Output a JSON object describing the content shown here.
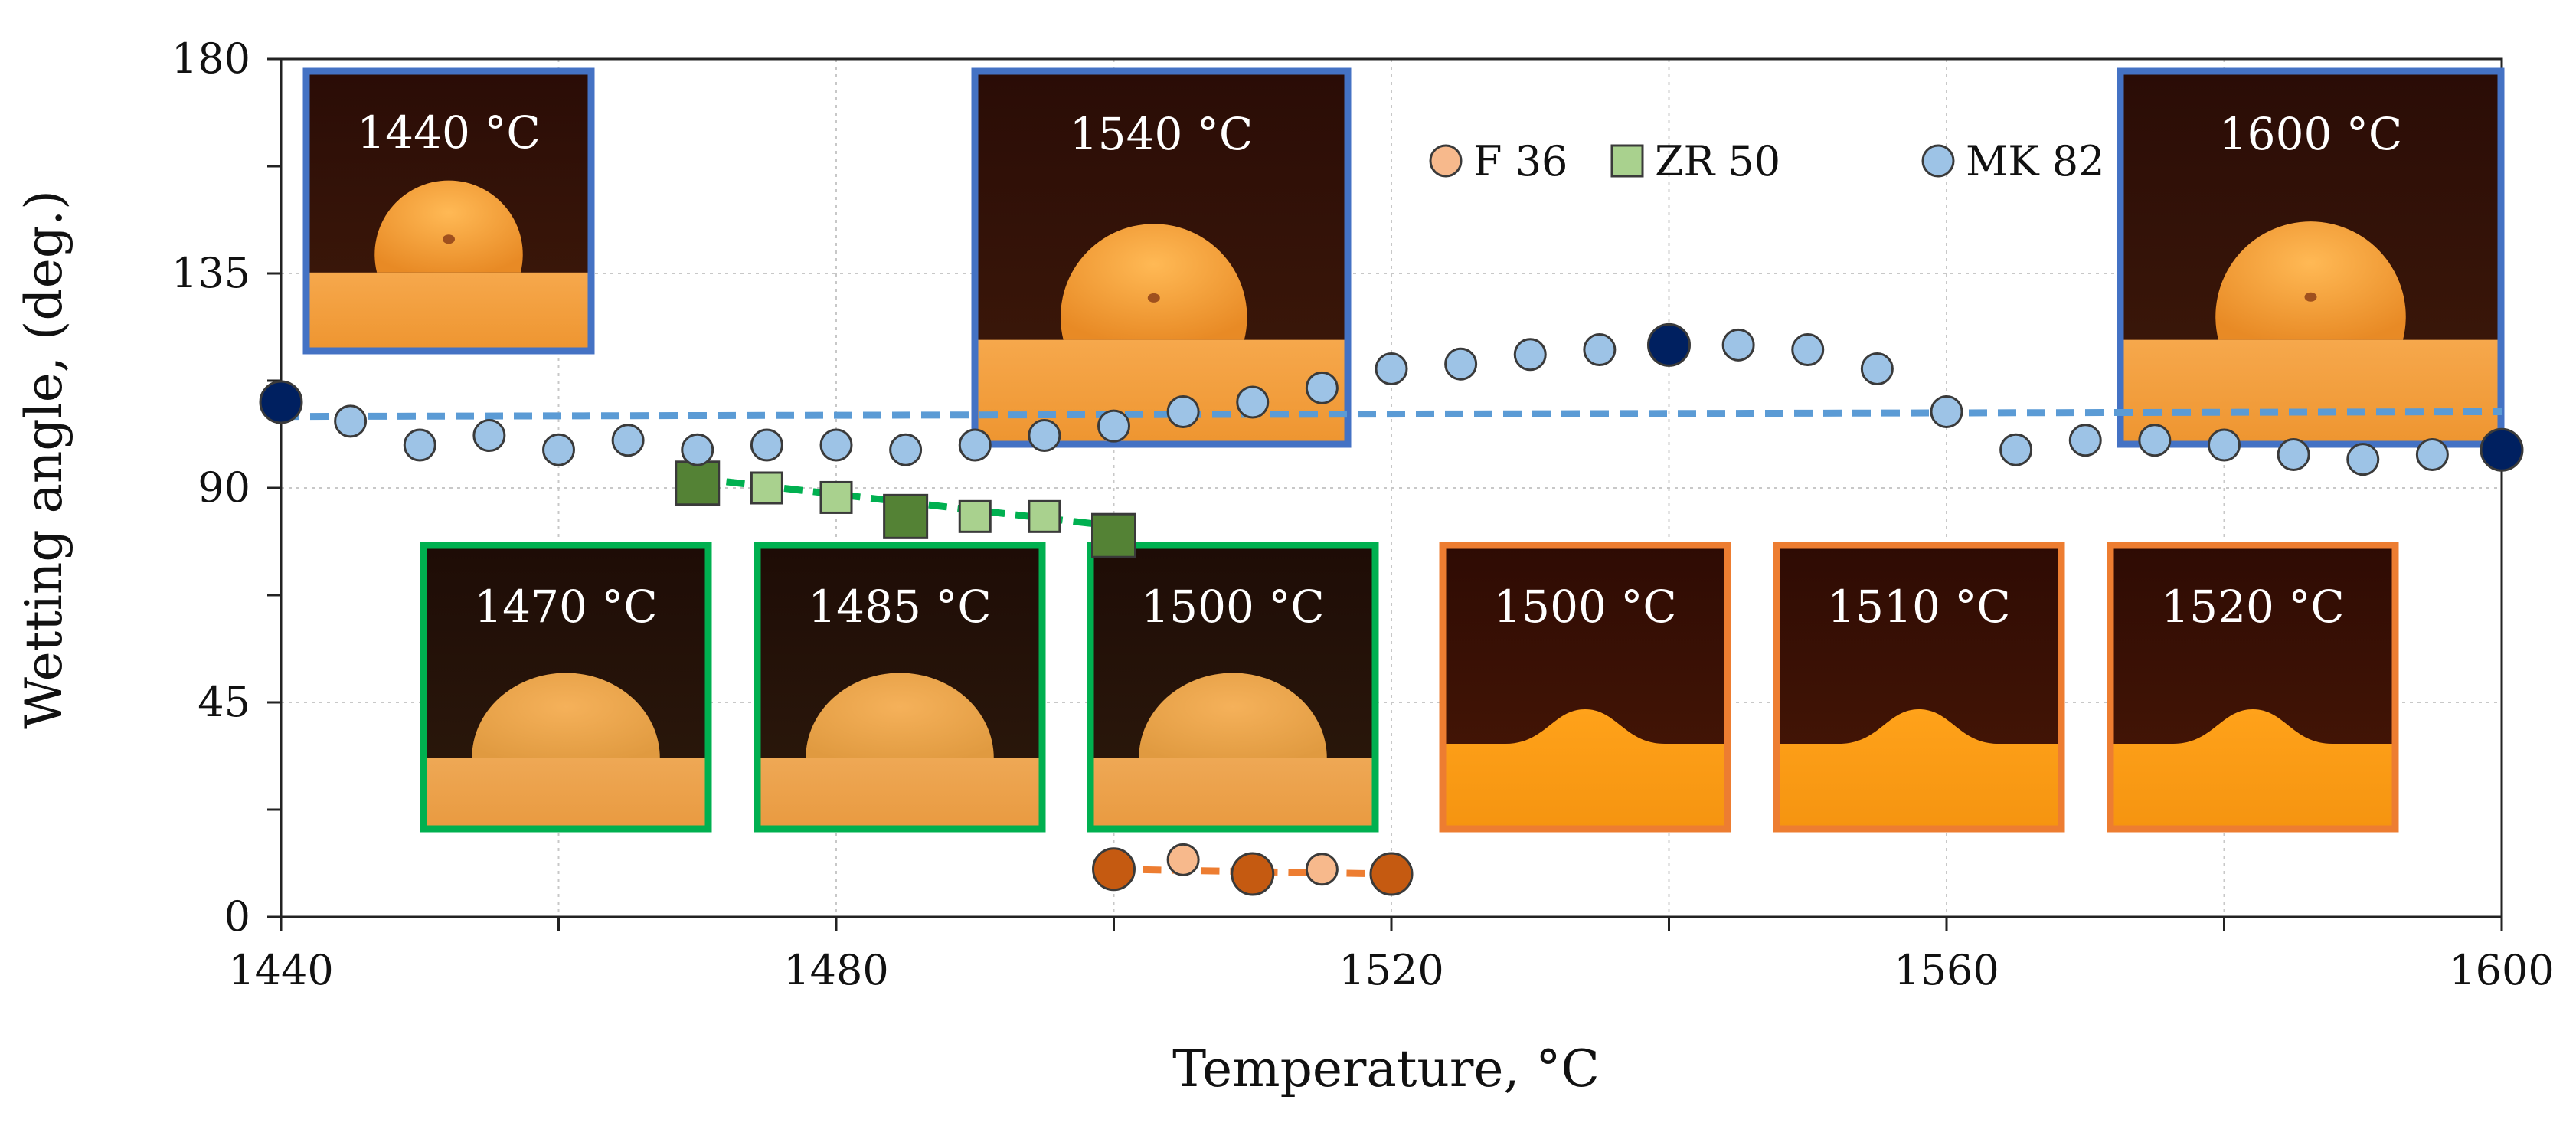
{
  "chart_data": {
    "type": "scatter",
    "title": "",
    "xlabel": "Temperature, °C",
    "ylabel": "Wetting angle, (deg.)",
    "xlim": [
      1440,
      1600
    ],
    "ylim": [
      0,
      180
    ],
    "xticks": [
      1440,
      1480,
      1520,
      1560,
      1600
    ],
    "xtick_labels": [
      "1440",
      "1480",
      "1520",
      "1560",
      "1600"
    ],
    "yticks": [
      0,
      45,
      90,
      135,
      180
    ],
    "ytick_labels": [
      "0",
      "45",
      "90",
      "135",
      "180"
    ],
    "grid": true,
    "legend_position": "top-center",
    "series": [
      {
        "name": "F 36",
        "marker": "circle",
        "color": "#f7b98c",
        "highlight_color": "#c55a11",
        "trend_color": "#ed7d31",
        "x": [
          1500,
          1505,
          1510,
          1515,
          1520
        ],
        "y": [
          10,
          12,
          9,
          10,
          9
        ],
        "highlighted": [
          true,
          false,
          true,
          false,
          true
        ],
        "trend_y": [
          10,
          9
        ]
      },
      {
        "name": "ZR 50",
        "marker": "square",
        "color": "#a9d18e",
        "highlight_color": "#548235",
        "trend_color": "#00b050",
        "x": [
          1470,
          1475,
          1480,
          1485,
          1490,
          1495,
          1500
        ],
        "y": [
          91,
          90,
          88,
          84,
          84,
          84,
          80
        ],
        "highlighted": [
          true,
          false,
          false,
          true,
          false,
          false,
          true
        ],
        "trend_y": [
          92,
          82
        ]
      },
      {
        "name": "MK 82",
        "marker": "circle",
        "color": "#9dc3e6",
        "highlight_color": "#002060",
        "trend_color": "#5b9bd5",
        "x": [
          1440,
          1445,
          1450,
          1455,
          1460,
          1465,
          1470,
          1475,
          1480,
          1485,
          1490,
          1495,
          1500,
          1505,
          1510,
          1515,
          1520,
          1525,
          1530,
          1535,
          1540,
          1545,
          1550,
          1555,
          1560,
          1565,
          1570,
          1575,
          1580,
          1585,
          1590,
          1595,
          1600
        ],
        "y": [
          108,
          104,
          99,
          101,
          98,
          100,
          98,
          99,
          99,
          98,
          99,
          101,
          103,
          106,
          108,
          111,
          115,
          116,
          118,
          119,
          120,
          120,
          119,
          115,
          106,
          98,
          100,
          100,
          99,
          97,
          96,
          97,
          98
        ],
        "highlighted": [
          true,
          false,
          false,
          false,
          false,
          false,
          false,
          false,
          false,
          false,
          false,
          false,
          false,
          false,
          false,
          false,
          false,
          false,
          false,
          false,
          true,
          false,
          false,
          false,
          false,
          false,
          false,
          false,
          false,
          false,
          false,
          false,
          true
        ],
        "trend_y": [
          105,
          106
        ]
      }
    ],
    "insets": [
      {
        "label": "1440 °C",
        "series": "MK 82",
        "frame_color": "#4472c4",
        "shape": "high"
      },
      {
        "label": "1540 °C",
        "series": "MK 82",
        "frame_color": "#4472c4",
        "shape": "high"
      },
      {
        "label": "1600 °C",
        "series": "MK 82",
        "frame_color": "#4472c4",
        "shape": "high"
      },
      {
        "label": "1470 °C",
        "series": "ZR 50",
        "frame_color": "#00b050",
        "shape": "mid"
      },
      {
        "label": "1485 °C",
        "series": "ZR 50",
        "frame_color": "#00b050",
        "shape": "mid"
      },
      {
        "label": "1500 °C",
        "series": "ZR 50",
        "frame_color": "#00b050",
        "shape": "mid"
      },
      {
        "label": "1500 °C",
        "series": "F 36",
        "frame_color": "#ed7d31",
        "shape": "flat"
      },
      {
        "label": "1510 °C",
        "series": "F 36",
        "frame_color": "#ed7d31",
        "shape": "flat"
      },
      {
        "label": "1520 °C",
        "series": "F 36",
        "frame_color": "#ed7d31",
        "shape": "flat"
      }
    ]
  }
}
